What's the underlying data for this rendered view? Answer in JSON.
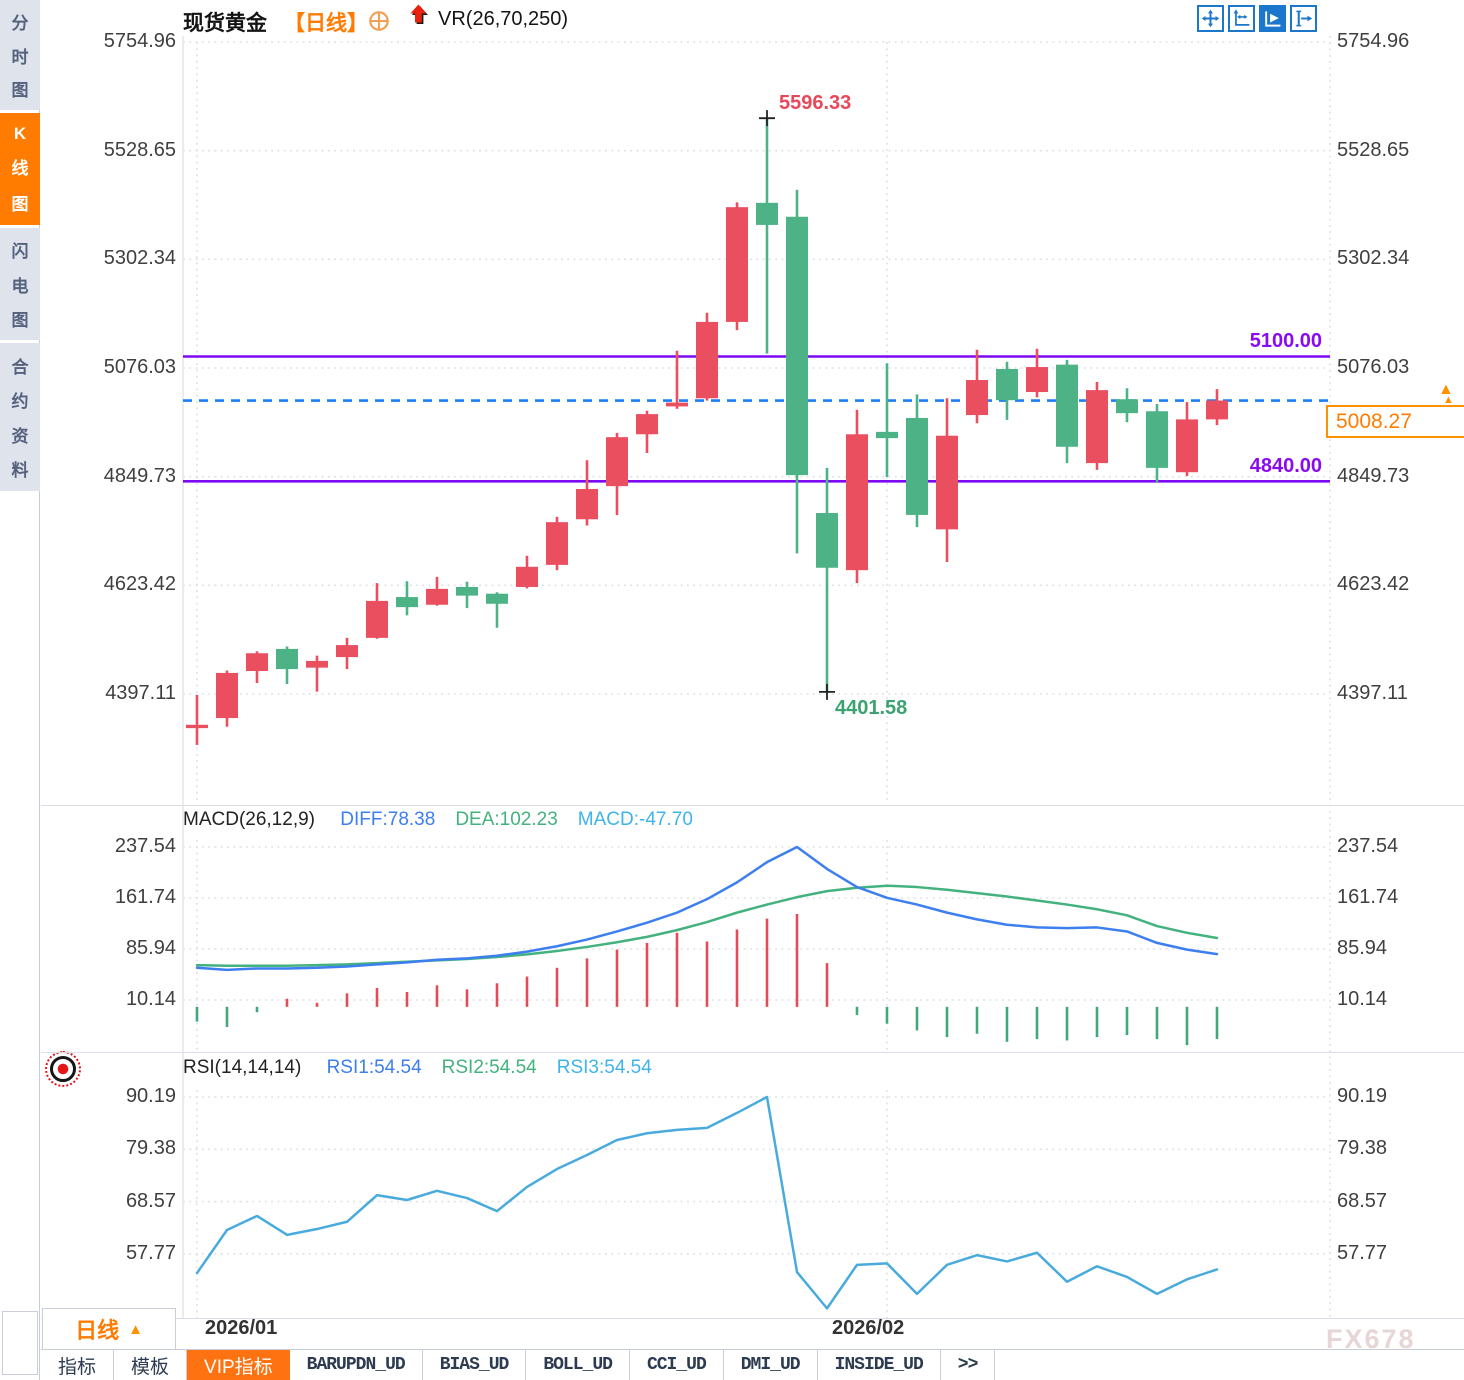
{
  "sidebar": {
    "tabs": [
      {
        "label": "分时图",
        "active": false
      },
      {
        "label": "K线图",
        "active": true
      },
      {
        "label": "闪电图",
        "active": false
      },
      {
        "label": "合约资料",
        "active": false
      }
    ]
  },
  "header": {
    "symbol": "现货黄金",
    "period": "【日线】",
    "target_icon": "circle-plus-icon",
    "arrow_icon": "red-up-arrow-icon",
    "overlay_indicator": "VR(26,70,250)"
  },
  "toolbar": {
    "icons": [
      {
        "name": "move-crosshair-icon",
        "active": false
      },
      {
        "name": "axis-fit-icon",
        "active": false
      },
      {
        "name": "chart-pointer-icon",
        "active": true
      },
      {
        "name": "pan-to-latest-icon",
        "active": false
      }
    ]
  },
  "bottom_bar": {
    "period_label": "日线",
    "period_arrow": "▲",
    "tabs": [
      {
        "label": "指标",
        "active": false
      },
      {
        "label": "模板",
        "active": false
      },
      {
        "label": "VIP指标",
        "active": true
      },
      {
        "label": "BARUPDN_UD",
        "active": false
      },
      {
        "label": "BIAS_UD",
        "active": false
      },
      {
        "label": "BOLL_UD",
        "active": false
      },
      {
        "label": "CCI_UD",
        "active": false
      },
      {
        "label": "DMI_UD",
        "active": false
      },
      {
        "label": "INSIDE_UD",
        "active": false
      },
      {
        "label": ">>",
        "active": false
      }
    ]
  },
  "watermark": "FX678",
  "chart_data": [
    {
      "type": "candlestick",
      "title": "现货黄金 日线",
      "up_color": "#EA4F60",
      "down_color": "#4DB386",
      "y_ticks": [
        5754.96,
        5528.65,
        5302.34,
        5076.03,
        4849.73,
        4623.42,
        4397.11
      ],
      "x_months": [
        {
          "label": "2026/01",
          "candle_index": 0
        },
        {
          "label": "2026/02",
          "candle_index": 23
        }
      ],
      "horizontal_lines": [
        {
          "price": 5100.0,
          "label": "5100.00",
          "color": "#7D0AF0"
        },
        {
          "price": 4840.0,
          "label": "4840.00",
          "color": "#7D0AF0"
        }
      ],
      "current_price": {
        "price": 5008.27,
        "label": "5008.27",
        "color": "#FF8A00",
        "line_color": "#1E7FF2"
      },
      "high_marker": {
        "candle_index": 19,
        "price": 5596.33,
        "label": "5596.33",
        "color": "#E8485A"
      },
      "low_marker": {
        "candle_index": 21,
        "price": 4401.58,
        "label": "4401.58",
        "color": "#3AA371"
      },
      "candles": [
        [
          4326,
          4395,
          4291,
          4333,
          "u"
        ],
        [
          4347,
          4446,
          4329,
          4441,
          "u"
        ],
        [
          4445,
          4486,
          4420,
          4482,
          "u"
        ],
        [
          4491,
          4496,
          4418,
          4449,
          "d"
        ],
        [
          4452,
          4477,
          4402,
          4466,
          "u"
        ],
        [
          4474,
          4514,
          4449,
          4499,
          "u"
        ],
        [
          4514,
          4628,
          4512,
          4591,
          "u"
        ],
        [
          4599,
          4632,
          4561,
          4578,
          "d"
        ],
        [
          4583,
          4641,
          4581,
          4616,
          "u"
        ],
        [
          4620,
          4631,
          4576,
          4602,
          "d"
        ],
        [
          4606,
          4609,
          4535,
          4585,
          "d"
        ],
        [
          4620,
          4685,
          4617,
          4662,
          "u"
        ],
        [
          4666,
          4766,
          4655,
          4755,
          "u"
        ],
        [
          4761,
          4884,
          4748,
          4824,
          "u"
        ],
        [
          4830,
          4941,
          4770,
          4932,
          "u"
        ],
        [
          4938,
          4987,
          4899,
          4980,
          "u"
        ],
        [
          4996,
          5112,
          4991,
          5004,
          "u"
        ],
        [
          5013,
          5191,
          5008,
          5172,
          "u"
        ],
        [
          5172,
          5421,
          5155,
          5411,
          "u"
        ],
        [
          5420,
          5596.33,
          5106,
          5374,
          "d"
        ],
        [
          5391,
          5447,
          4690,
          4853,
          "d"
        ],
        [
          4774,
          4868,
          4401.58,
          4660,
          "d"
        ],
        [
          4655,
          4989,
          4628,
          4938,
          "u"
        ],
        [
          4943,
          5086,
          4849,
          4930,
          "d"
        ],
        [
          4972,
          5021,
          4745,
          4770,
          "d"
        ],
        [
          4740,
          5013,
          4672,
          4935,
          "u"
        ],
        [
          4978,
          5114,
          4961,
          5051,
          "u"
        ],
        [
          5074,
          5089,
          4968,
          5009,
          "d"
        ],
        [
          5026,
          5116,
          5015,
          5078,
          "u"
        ],
        [
          5083,
          5093,
          4878,
          4912,
          "d"
        ],
        [
          4878,
          5047,
          4864,
          5030,
          "u"
        ],
        [
          5011,
          5034,
          4963,
          4982,
          "d"
        ],
        [
          4986,
          5001,
          4838,
          4868,
          "d"
        ],
        [
          4859,
          5005,
          4851,
          4969,
          "u"
        ],
        [
          4969,
          5032,
          4957,
          5008.27,
          "u"
        ]
      ]
    },
    {
      "type": "macd_panel",
      "label": "MACD(26,12,9)",
      "values": [
        {
          "name": "DIFF",
          "text": "DIFF:78.38",
          "color": "#3D7EF0"
        },
        {
          "name": "DEA",
          "text": "DEA:102.23",
          "color": "#44B27E"
        },
        {
          "name": "MACD",
          "text": "MACD:-47.70",
          "color": "#3FB3EA"
        }
      ],
      "y_ticks": [
        237.54,
        161.74,
        85.94,
        10.14
      ],
      "diff": [
        58,
        55,
        57,
        57,
        58,
        60,
        63,
        66,
        70,
        72,
        76,
        82,
        90,
        100,
        112,
        125,
        140,
        160,
        185,
        215,
        237.5,
        205,
        178,
        162,
        152,
        140,
        130,
        122,
        118,
        117,
        118,
        112,
        95,
        85,
        78.38
      ],
      "dea": [
        62,
        61,
        61,
        61,
        62,
        63,
        65,
        67,
        69,
        71,
        74,
        78,
        83,
        89,
        96,
        104,
        114,
        126,
        140,
        152,
        163,
        172,
        177,
        180,
        178,
        174,
        169,
        164,
        158,
        152,
        145,
        136,
        120,
        110,
        102.23
      ],
      "hist": [
        -22,
        -30,
        -8,
        12,
        6,
        20,
        28,
        22,
        32,
        26,
        35,
        45,
        58,
        72,
        85,
        95,
        110,
        97,
        115,
        131,
        138,
        65,
        -12,
        -25,
        -35,
        -45,
        -40,
        -52,
        -48,
        -50,
        -45,
        -42,
        -48,
        -57,
        -47.7
      ],
      "hist_up_color": "#E34B58",
      "hist_down_color": "#3FA97C"
    },
    {
      "type": "rsi_panel",
      "label": "RSI(14,14,14)",
      "values": [
        {
          "name": "RSI1",
          "text": "RSI1:54.54",
          "color": "#3D7EF0"
        },
        {
          "name": "RSI2",
          "text": "RSI2:54.54",
          "color": "#44B27E"
        },
        {
          "name": "RSI3",
          "text": "RSI3:54.54",
          "color": "#3FB3EA"
        }
      ],
      "y_ticks": [
        90.19,
        79.38,
        68.57,
        57.77
      ],
      "rsi": [
        53.8,
        62.7,
        65.6,
        61.7,
        62.9,
        64.4,
        69.9,
        68.9,
        70.8,
        69.3,
        66.6,
        71.6,
        75.3,
        78.2,
        81.3,
        82.7,
        83.4,
        83.8,
        86.9,
        90.19,
        54,
        46.5,
        55.5,
        55.8,
        49.5,
        55.5,
        57.5,
        56.2,
        58,
        52,
        55.2,
        53,
        49.5,
        52.5,
        54.54
      ],
      "line_color": "#49ABDC"
    }
  ]
}
